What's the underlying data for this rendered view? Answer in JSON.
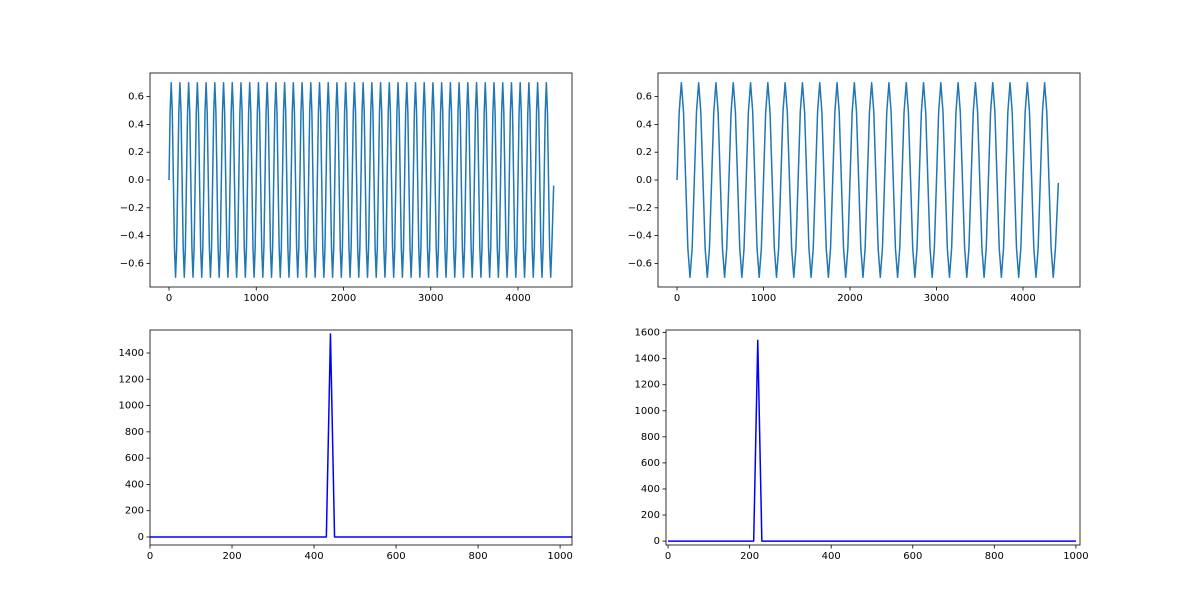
{
  "chart_data": [
    {
      "type": "line",
      "color": "#1f77b4",
      "xlim": [
        -218,
        4619
      ],
      "ylim": [
        -0.77,
        0.77
      ],
      "xticks": [
        0,
        1000,
        2000,
        3000,
        4000
      ],
      "yticks": [
        {
          "value": -0.6,
          "label": "−0.6"
        },
        {
          "value": -0.4,
          "label": "−0.4"
        },
        {
          "value": -0.2,
          "label": "−0.2"
        },
        {
          "value": 0,
          "label": "0.0"
        },
        {
          "value": 0.2,
          "label": "0.2"
        },
        {
          "value": 0.4,
          "label": "0.4"
        },
        {
          "value": 0.6,
          "label": "0.6"
        }
      ],
      "x": [
        0,
        12.5,
        25,
        37.5,
        50,
        62.5,
        75,
        87.5,
        100,
        112.5,
        125,
        137.5,
        150,
        162.5,
        175,
        187.5,
        200,
        212.5,
        225,
        237.5,
        250,
        262.5,
        275,
        287.5,
        300,
        312.5,
        325,
        337.5,
        350,
        362.5,
        375,
        387.5,
        400,
        412.5,
        425,
        437.5,
        450,
        462.5,
        475,
        487.5,
        500,
        512.5,
        525,
        537.5,
        550,
        562.5,
        575,
        587.5,
        600,
        612.5,
        625,
        637.5,
        650,
        662.5,
        675,
        687.5,
        700,
        712.5,
        725,
        737.5,
        750,
        762.5,
        775,
        787.5,
        800,
        812.5,
        825,
        837.5,
        850,
        862.5,
        875,
        887.5,
        900,
        912.5,
        925,
        937.5,
        950,
        962.5,
        975,
        987.5,
        1000,
        1012.5,
        1025,
        1037.5,
        1050,
        1062.5,
        1075,
        1087.5,
        1100,
        1112.5,
        1125,
        1137.5,
        1150,
        1162.5,
        1175,
        1187.5,
        1200,
        1212.5,
        1225,
        1237.5,
        1250,
        1262.5,
        1275,
        1287.5,
        1300,
        1312.5,
        1325,
        1337.5,
        1350,
        1362.5,
        1375,
        1387.5,
        1400,
        1412.5,
        1425,
        1437.5,
        1450,
        1462.5,
        1475,
        1487.5,
        1500,
        1512.5,
        1525,
        1537.5,
        1550,
        1562.5,
        1575,
        1587.5,
        1600,
        1612.5,
        1625,
        1637.5,
        1650,
        1662.5,
        1675,
        1687.5,
        1700,
        1712.5,
        1725,
        1737.5,
        1750,
        1762.5,
        1775,
        1787.5,
        1800,
        1812.5,
        1825,
        1837.5,
        1850,
        1862.5,
        1875,
        1887.5,
        1900,
        1912.5,
        1925,
        1937.5,
        1950,
        1962.5,
        1975,
        1987.5,
        2000,
        2012.5,
        2025,
        2037.5,
        2050,
        2062.5,
        2075,
        2087.5,
        2100,
        2112.5,
        2125,
        2137.5,
        2150,
        2162.5,
        2175,
        2187.5,
        2200,
        2212.5,
        2225,
        2237.5,
        2250,
        2262.5,
        2275,
        2287.5,
        2300,
        2312.5,
        2325,
        2337.5,
        2350,
        2362.5,
        2375,
        2387.5,
        2400,
        2412.5,
        2425,
        2437.5,
        2450,
        2462.5,
        2475,
        2487.5,
        2500,
        2512.5,
        2525,
        2537.5,
        2550,
        2562.5,
        2575,
        2587.5,
        2600,
        2612.5,
        2625,
        2637.5,
        2650,
        2662.5,
        2675,
        2687.5,
        2700,
        2712.5,
        2725,
        2737.5,
        2750,
        2762.5,
        2775,
        2787.5,
        2800,
        2812.5,
        2825,
        2837.5,
        2850,
        2862.5,
        2875,
        2887.5,
        2900,
        2912.5,
        2925,
        2937.5,
        2950,
        2962.5,
        2975,
        2987.5,
        3000,
        3012.5,
        3025,
        3037.5,
        3050,
        3062.5,
        3075,
        3087.5,
        3100,
        3112.5,
        3125,
        3137.5,
        3150,
        3162.5,
        3175,
        3187.5,
        3200,
        3212.5,
        3225,
        3237.5,
        3250,
        3262.5,
        3275,
        3287.5,
        3300,
        3312.5,
        3325,
        3337.5,
        3350,
        3362.5,
        3375,
        3387.5,
        3400,
        3412.5,
        3425,
        3437.5,
        3450,
        3462.5,
        3475,
        3487.5,
        3500,
        3512.5,
        3525,
        3537.5,
        3550,
        3562.5,
        3575,
        3587.5,
        3600,
        3612.5,
        3625,
        3637.5,
        3650,
        3662.5,
        3675,
        3687.5,
        3700,
        3712.5,
        3725,
        3737.5,
        3750,
        3762.5,
        3775,
        3787.5,
        3800,
        3812.5,
        3825,
        3837.5,
        3850,
        3862.5,
        3875,
        3887.5,
        3900,
        3912.5,
        3925,
        3937.5,
        3950,
        3962.5,
        3975,
        3987.5,
        4000,
        4012.5,
        4025,
        4037.5,
        4050,
        4062.5,
        4075,
        4087.5,
        4100,
        4112.5,
        4125,
        4137.5,
        4150,
        4162.5,
        4175,
        4187.5,
        4200,
        4212.5,
        4225,
        4237.5,
        4250,
        4262.5,
        4275,
        4287.5,
        4300,
        4312.5,
        4325,
        4337.5,
        4350,
        4362.5,
        4375,
        4387.5,
        4409
      ],
      "values": [
        0,
        0.49,
        0.7,
        0.49,
        0,
        -0.49,
        -0.7,
        -0.49,
        0,
        0.49,
        0.7,
        0.49,
        0,
        -0.49,
        -0.7,
        -0.49,
        0,
        0.49,
        0.7,
        0.49,
        0,
        -0.49,
        -0.7,
        -0.49,
        0,
        0.49,
        0.7,
        0.49,
        0,
        -0.49,
        -0.7,
        -0.49,
        0,
        0.49,
        0.7,
        0.49,
        0,
        -0.49,
        -0.7,
        -0.49,
        0,
        0.49,
        0.7,
        0.49,
        0,
        -0.49,
        -0.7,
        -0.49,
        0,
        0.49,
        0.7,
        0.49,
        0,
        -0.49,
        -0.7,
        -0.49,
        0,
        0.49,
        0.7,
        0.49,
        0,
        -0.49,
        -0.7,
        -0.49,
        0,
        0.49,
        0.7,
        0.49,
        0,
        -0.49,
        -0.7,
        -0.49,
        0,
        0.49,
        0.7,
        0.49,
        0,
        -0.49,
        -0.7,
        -0.49,
        0,
        0.49,
        0.7,
        0.49,
        0,
        -0.49,
        -0.7,
        -0.49,
        0,
        0.49,
        0.7,
        0.49,
        0,
        -0.49,
        -0.7,
        -0.49,
        0,
        0.49,
        0.7,
        0.49,
        0,
        -0.49,
        -0.7,
        -0.49,
        0,
        0.49,
        0.7,
        0.49,
        0,
        -0.49,
        -0.7,
        -0.49,
        0,
        0.49,
        0.7,
        0.49,
        0,
        -0.49,
        -0.7,
        -0.49,
        0,
        0.49,
        0.7,
        0.49,
        0,
        -0.49,
        -0.7,
        -0.49,
        0,
        0.49,
        0.7,
        0.49,
        0,
        -0.49,
        -0.7,
        -0.49,
        0,
        0.49,
        0.7,
        0.49,
        0,
        -0.49,
        -0.7,
        -0.49,
        0,
        0.49,
        0.7,
        0.49,
        0,
        -0.49,
        -0.7,
        -0.49,
        0,
        0.49,
        0.7,
        0.49,
        0,
        -0.49,
        -0.7,
        -0.49,
        0,
        0.49,
        0.7,
        0.49,
        0,
        -0.49,
        -0.7,
        -0.49,
        0,
        0.49,
        0.7,
        0.49,
        0,
        -0.49,
        -0.7,
        -0.49,
        0,
        0.49,
        0.7,
        0.49,
        0,
        -0.49,
        -0.7,
        -0.49,
        0,
        0.49,
        0.7,
        0.49,
        0,
        -0.49,
        -0.7,
        -0.49,
        0,
        0.49,
        0.7,
        0.49,
        0,
        -0.49,
        -0.7,
        -0.49,
        0,
        0.49,
        0.7,
        0.49,
        0,
        -0.49,
        -0.7,
        -0.49,
        0,
        0.49,
        0.7,
        0.49,
        0,
        -0.49,
        -0.7,
        -0.49,
        0,
        0.49,
        0.7,
        0.49,
        0,
        -0.49,
        -0.7,
        -0.49,
        0,
        0.49,
        0.7,
        0.49,
        0,
        -0.49,
        -0.7,
        -0.49,
        0,
        0.49,
        0.7,
        0.49,
        0,
        -0.49,
        -0.7,
        -0.49,
        0,
        0.49,
        0.7,
        0.49,
        0,
        -0.49,
        -0.7,
        -0.49,
        0,
        0.49,
        0.7,
        0.49,
        0,
        -0.49,
        -0.7,
        -0.49,
        0,
        0.49,
        0.7,
        0.49,
        0,
        -0.49,
        -0.7,
        -0.49,
        0,
        0.49,
        0.7,
        0.49,
        0,
        -0.49,
        -0.7,
        -0.49,
        0,
        0.49,
        0.7,
        0.49,
        0,
        -0.49,
        -0.7,
        -0.49,
        0,
        0.49,
        0.7,
        0.49,
        0,
        -0.49,
        -0.7,
        -0.49,
        0,
        0.49,
        0.7,
        0.49,
        0,
        -0.49,
        -0.7,
        -0.49,
        0,
        0.49,
        0.7,
        0.49,
        0,
        -0.49,
        -0.7,
        -0.49,
        0,
        0.49,
        0.7,
        0.49,
        0,
        -0.49,
        -0.7,
        -0.49,
        0,
        0.49,
        0.7,
        0.49,
        0,
        -0.49,
        -0.7,
        -0.49,
        0,
        0.49,
        0.7,
        0.49,
        0,
        -0.49,
        -0.7,
        -0.49,
        0,
        0.49,
        0.7,
        0.49,
        0,
        -0.49,
        -0.7,
        -0.49,
        0,
        0.49,
        0.7,
        0.49,
        0,
        -0.49,
        -0.7,
        -0.49,
        0,
        0.49,
        0.7,
        0.49,
        0,
        -0.49,
        -0.7,
        -0.49,
        -0.04
      ]
    },
    {
      "type": "line",
      "color": "#1f77b4",
      "xlim": [
        -220,
        4659
      ],
      "ylim": [
        -0.77,
        0.77
      ],
      "xticks": [
        0,
        1000,
        2000,
        3000,
        4000
      ],
      "yticks": [
        {
          "value": -0.6,
          "label": "−0.6"
        },
        {
          "value": -0.4,
          "label": "−0.4"
        },
        {
          "value": -0.2,
          "label": "−0.2"
        },
        {
          "value": 0,
          "label": "0.0"
        },
        {
          "value": 0.2,
          "label": "0.2"
        },
        {
          "value": 0.4,
          "label": "0.4"
        },
        {
          "value": 0.6,
          "label": "0.6"
        }
      ],
      "x": [
        0,
        25,
        50,
        75,
        100,
        125,
        150,
        175,
        200,
        225,
        250,
        275,
        300,
        325,
        350,
        375,
        400,
        425,
        450,
        475,
        500,
        525,
        550,
        575,
        600,
        625,
        650,
        675,
        700,
        725,
        750,
        775,
        800,
        825,
        850,
        875,
        900,
        925,
        950,
        975,
        1000,
        1025,
        1050,
        1075,
        1100,
        1125,
        1150,
        1175,
        1200,
        1225,
        1250,
        1275,
        1300,
        1325,
        1350,
        1375,
        1400,
        1425,
        1450,
        1475,
        1500,
        1525,
        1550,
        1575,
        1600,
        1625,
        1650,
        1675,
        1700,
        1725,
        1750,
        1775,
        1800,
        1825,
        1850,
        1875,
        1900,
        1925,
        1950,
        1975,
        2000,
        2025,
        2050,
        2075,
        2100,
        2125,
        2150,
        2175,
        2200,
        2225,
        2250,
        2275,
        2300,
        2325,
        2350,
        2375,
        2400,
        2425,
        2450,
        2475,
        2500,
        2525,
        2550,
        2575,
        2600,
        2625,
        2650,
        2675,
        2700,
        2725,
        2750,
        2775,
        2800,
        2825,
        2850,
        2875,
        2900,
        2925,
        2950,
        2975,
        3000,
        3025,
        3050,
        3075,
        3100,
        3125,
        3150,
        3175,
        3200,
        3225,
        3250,
        3275,
        3300,
        3325,
        3350,
        3375,
        3400,
        3425,
        3450,
        3475,
        3500,
        3525,
        3550,
        3575,
        3600,
        3625,
        3650,
        3675,
        3700,
        3725,
        3750,
        3775,
        3800,
        3825,
        3850,
        3875,
        3900,
        3925,
        3950,
        3975,
        4000,
        4025,
        4050,
        4075,
        4100,
        4125,
        4150,
        4175,
        4200,
        4225,
        4250,
        4275,
        4300,
        4325,
        4350,
        4375,
        4409
      ],
      "values": [
        0,
        0.49,
        0.7,
        0.49,
        0,
        -0.49,
        -0.7,
        -0.49,
        0,
        0.49,
        0.7,
        0.49,
        0,
        -0.49,
        -0.7,
        -0.49,
        0,
        0.49,
        0.7,
        0.49,
        0,
        -0.49,
        -0.7,
        -0.49,
        0,
        0.49,
        0.7,
        0.49,
        0,
        -0.49,
        -0.7,
        -0.49,
        0,
        0.49,
        0.7,
        0.49,
        0,
        -0.49,
        -0.7,
        -0.49,
        0,
        0.49,
        0.7,
        0.49,
        0,
        -0.49,
        -0.7,
        -0.49,
        0,
        0.49,
        0.7,
        0.49,
        0,
        -0.49,
        -0.7,
        -0.49,
        0,
        0.49,
        0.7,
        0.49,
        0,
        -0.49,
        -0.7,
        -0.49,
        0,
        0.49,
        0.7,
        0.49,
        0,
        -0.49,
        -0.7,
        -0.49,
        0,
        0.49,
        0.7,
        0.49,
        0,
        -0.49,
        -0.7,
        -0.49,
        0,
        0.49,
        0.7,
        0.49,
        0,
        -0.49,
        -0.7,
        -0.49,
        0,
        0.49,
        0.7,
        0.49,
        0,
        -0.49,
        -0.7,
        -0.49,
        0,
        0.49,
        0.7,
        0.49,
        0,
        -0.49,
        -0.7,
        -0.49,
        0,
        0.49,
        0.7,
        0.49,
        0,
        -0.49,
        -0.7,
        -0.49,
        0,
        0.49,
        0.7,
        0.49,
        0,
        -0.49,
        -0.7,
        -0.49,
        0,
        0.49,
        0.7,
        0.49,
        0,
        -0.49,
        -0.7,
        -0.49,
        0,
        0.49,
        0.7,
        0.49,
        0,
        -0.49,
        -0.7,
        -0.49,
        0,
        0.49,
        0.7,
        0.49,
        0,
        -0.49,
        -0.7,
        -0.49,
        0,
        0.49,
        0.7,
        0.49,
        0,
        -0.49,
        -0.7,
        -0.49,
        0,
        0.49,
        0.7,
        0.49,
        0,
        -0.49,
        -0.7,
        -0.49,
        0,
        0.49,
        0.7,
        0.49,
        0,
        -0.49,
        -0.7,
        -0.49,
        0,
        0.49,
        0.7,
        0.49,
        0,
        -0.49,
        -0.7,
        -0.49,
        -0.02
      ]
    },
    {
      "type": "line",
      "color": "#0000ff",
      "xlim": [
        0,
        1029
      ],
      "ylim": [
        -61,
        1575
      ],
      "xticks": [
        0,
        200,
        400,
        600,
        800,
        1000
      ],
      "yticks": [
        0,
        200,
        400,
        600,
        800,
        1000,
        1200,
        1400
      ],
      "x": [
        0,
        430,
        440,
        450,
        1029
      ],
      "values": [
        0,
        0,
        1545,
        0,
        0
      ]
    },
    {
      "type": "line",
      "color": "#0000ff",
      "xlim": [
        -5,
        1010
      ],
      "ylim": [
        -30,
        1620
      ],
      "xticks": [
        0,
        200,
        400,
        600,
        800,
        1000
      ],
      "yticks": [
        0,
        200,
        400,
        600,
        800,
        1000,
        1200,
        1400,
        1600
      ],
      "x": [
        0,
        210,
        220,
        230,
        1000
      ],
      "values": [
        0,
        0,
        1540,
        0,
        0
      ]
    }
  ]
}
